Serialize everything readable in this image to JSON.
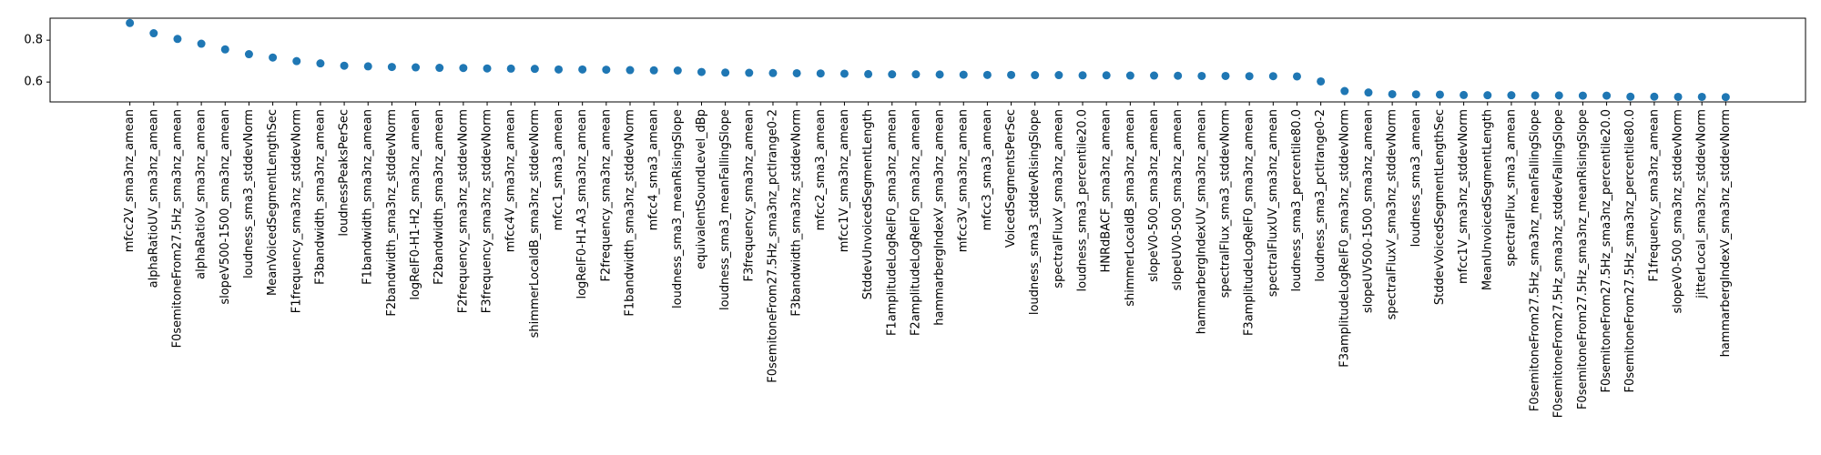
{
  "chart_data": {
    "type": "scatter",
    "color": "#1f77b4",
    "categories": [
      "mfcc2V_sma3nz_amean",
      "alphaRatioUV_sma3nz_amean",
      "F0semitoneFrom27.5Hz_sma3nz_amean",
      "alphaRatioV_sma3nz_amean",
      "slopeV500-1500_sma3nz_amean",
      "loudness_sma3_stddevNorm",
      "MeanVoicedSegmentLengthSec",
      "F1frequency_sma3nz_stddevNorm",
      "F3bandwidth_sma3nz_amean",
      "loudnessPeaksPerSec",
      "F1bandwidth_sma3nz_amean",
      "F2bandwidth_sma3nz_stddevNorm",
      "logRelF0-H1-H2_sma3nz_amean",
      "F2bandwidth_sma3nz_amean",
      "F2frequency_sma3nz_stddevNorm",
      "F3frequency_sma3nz_stddevNorm",
      "mfcc4V_sma3nz_amean",
      "shimmerLocaldB_sma3nz_stddevNorm",
      "mfcc1_sma3_amean",
      "logRelF0-H1-A3_sma3nz_amean",
      "F2frequency_sma3nz_amean",
      "F1bandwidth_sma3nz_stddevNorm",
      "mfcc4_sma3_amean",
      "loudness_sma3_meanRisingSlope",
      "equivalentSoundLevel_dBp",
      "loudness_sma3_meanFallingSlope",
      "F3frequency_sma3nz_amean",
      "F0semitoneFrom27.5Hz_sma3nz_pctlrange0-2",
      "F3bandwidth_sma3nz_stddevNorm",
      "mfcc2_sma3_amean",
      "mfcc1V_sma3nz_amean",
      "StddevUnvoicedSegmentLength",
      "F1amplitudeLogRelF0_sma3nz_amean",
      "F2amplitudeLogRelF0_sma3nz_amean",
      "hammarbergIndexV_sma3nz_amean",
      "mfcc3V_sma3nz_amean",
      "mfcc3_sma3_amean",
      "VoicedSegmentsPerSec",
      "loudness_sma3_stddevRisingSlope",
      "spectralFluxV_sma3nz_amean",
      "loudness_sma3_percentile20.0",
      "HNRdBACF_sma3nz_amean",
      "shimmerLocaldB_sma3nz_amean",
      "slopeV0-500_sma3nz_amean",
      "slopeUV0-500_sma3nz_amean",
      "hammarbergIndexUV_sma3nz_amean",
      "spectralFlux_sma3_stddevNorm",
      "F3amplitudeLogRelF0_sma3nz_amean",
      "spectralFluxUV_sma3nz_amean",
      "loudness_sma3_percentile80.0",
      "loudness_sma3_pctlrange0-2",
      "F3amplitudeLogRelF0_sma3nz_stddevNorm",
      "slopeUV500-1500_sma3nz_amean",
      "spectralFluxV_sma3nz_stddevNorm",
      "loudness_sma3_amean",
      "StddevVoicedSegmentLengthSec",
      "mfcc1V_sma3nz_stddevNorm",
      "MeanUnvoicedSegmentLength",
      "spectralFlux_sma3_amean",
      "F0semitoneFrom27.5Hz_sma3nz_meanFallingSlope",
      "F0semitoneFrom27.5Hz_sma3nz_stddevFallingSlope",
      "F0semitoneFrom27.5Hz_sma3nz_meanRisingSlope",
      "F0semitoneFrom27.5Hz_sma3nz_percentile20.0",
      "F0semitoneFrom27.5Hz_sma3nz_percentile80.0",
      "F1frequency_sma3nz_amean",
      "slopeV0-500_sma3nz_stddevNorm",
      "jitterLocal_sma3nz_stddevNorm",
      "hammarbergIndexV_sma3nz_stddevNorm"
    ],
    "values": [
      0.882,
      0.833,
      0.806,
      0.783,
      0.756,
      0.733,
      0.717,
      0.7,
      0.689,
      0.678,
      0.675,
      0.672,
      0.67,
      0.668,
      0.667,
      0.665,
      0.664,
      0.663,
      0.66,
      0.66,
      0.659,
      0.657,
      0.656,
      0.655,
      0.648,
      0.645,
      0.644,
      0.643,
      0.642,
      0.641,
      0.64,
      0.638,
      0.637,
      0.637,
      0.636,
      0.635,
      0.634,
      0.634,
      0.633,
      0.633,
      0.632,
      0.632,
      0.631,
      0.631,
      0.63,
      0.629,
      0.629,
      0.628,
      0.628,
      0.627,
      0.603,
      0.557,
      0.55,
      0.542,
      0.541,
      0.54,
      0.538,
      0.537,
      0.537,
      0.536,
      0.536,
      0.535,
      0.535,
      0.53,
      0.53,
      0.529,
      0.529,
      0.528
    ],
    "ylim": [
      0.505,
      0.905
    ],
    "yticks": [
      {
        "value": 0.6,
        "label": "0.6"
      },
      {
        "value": 0.8,
        "label": "0.8"
      }
    ],
    "grid": false
  }
}
